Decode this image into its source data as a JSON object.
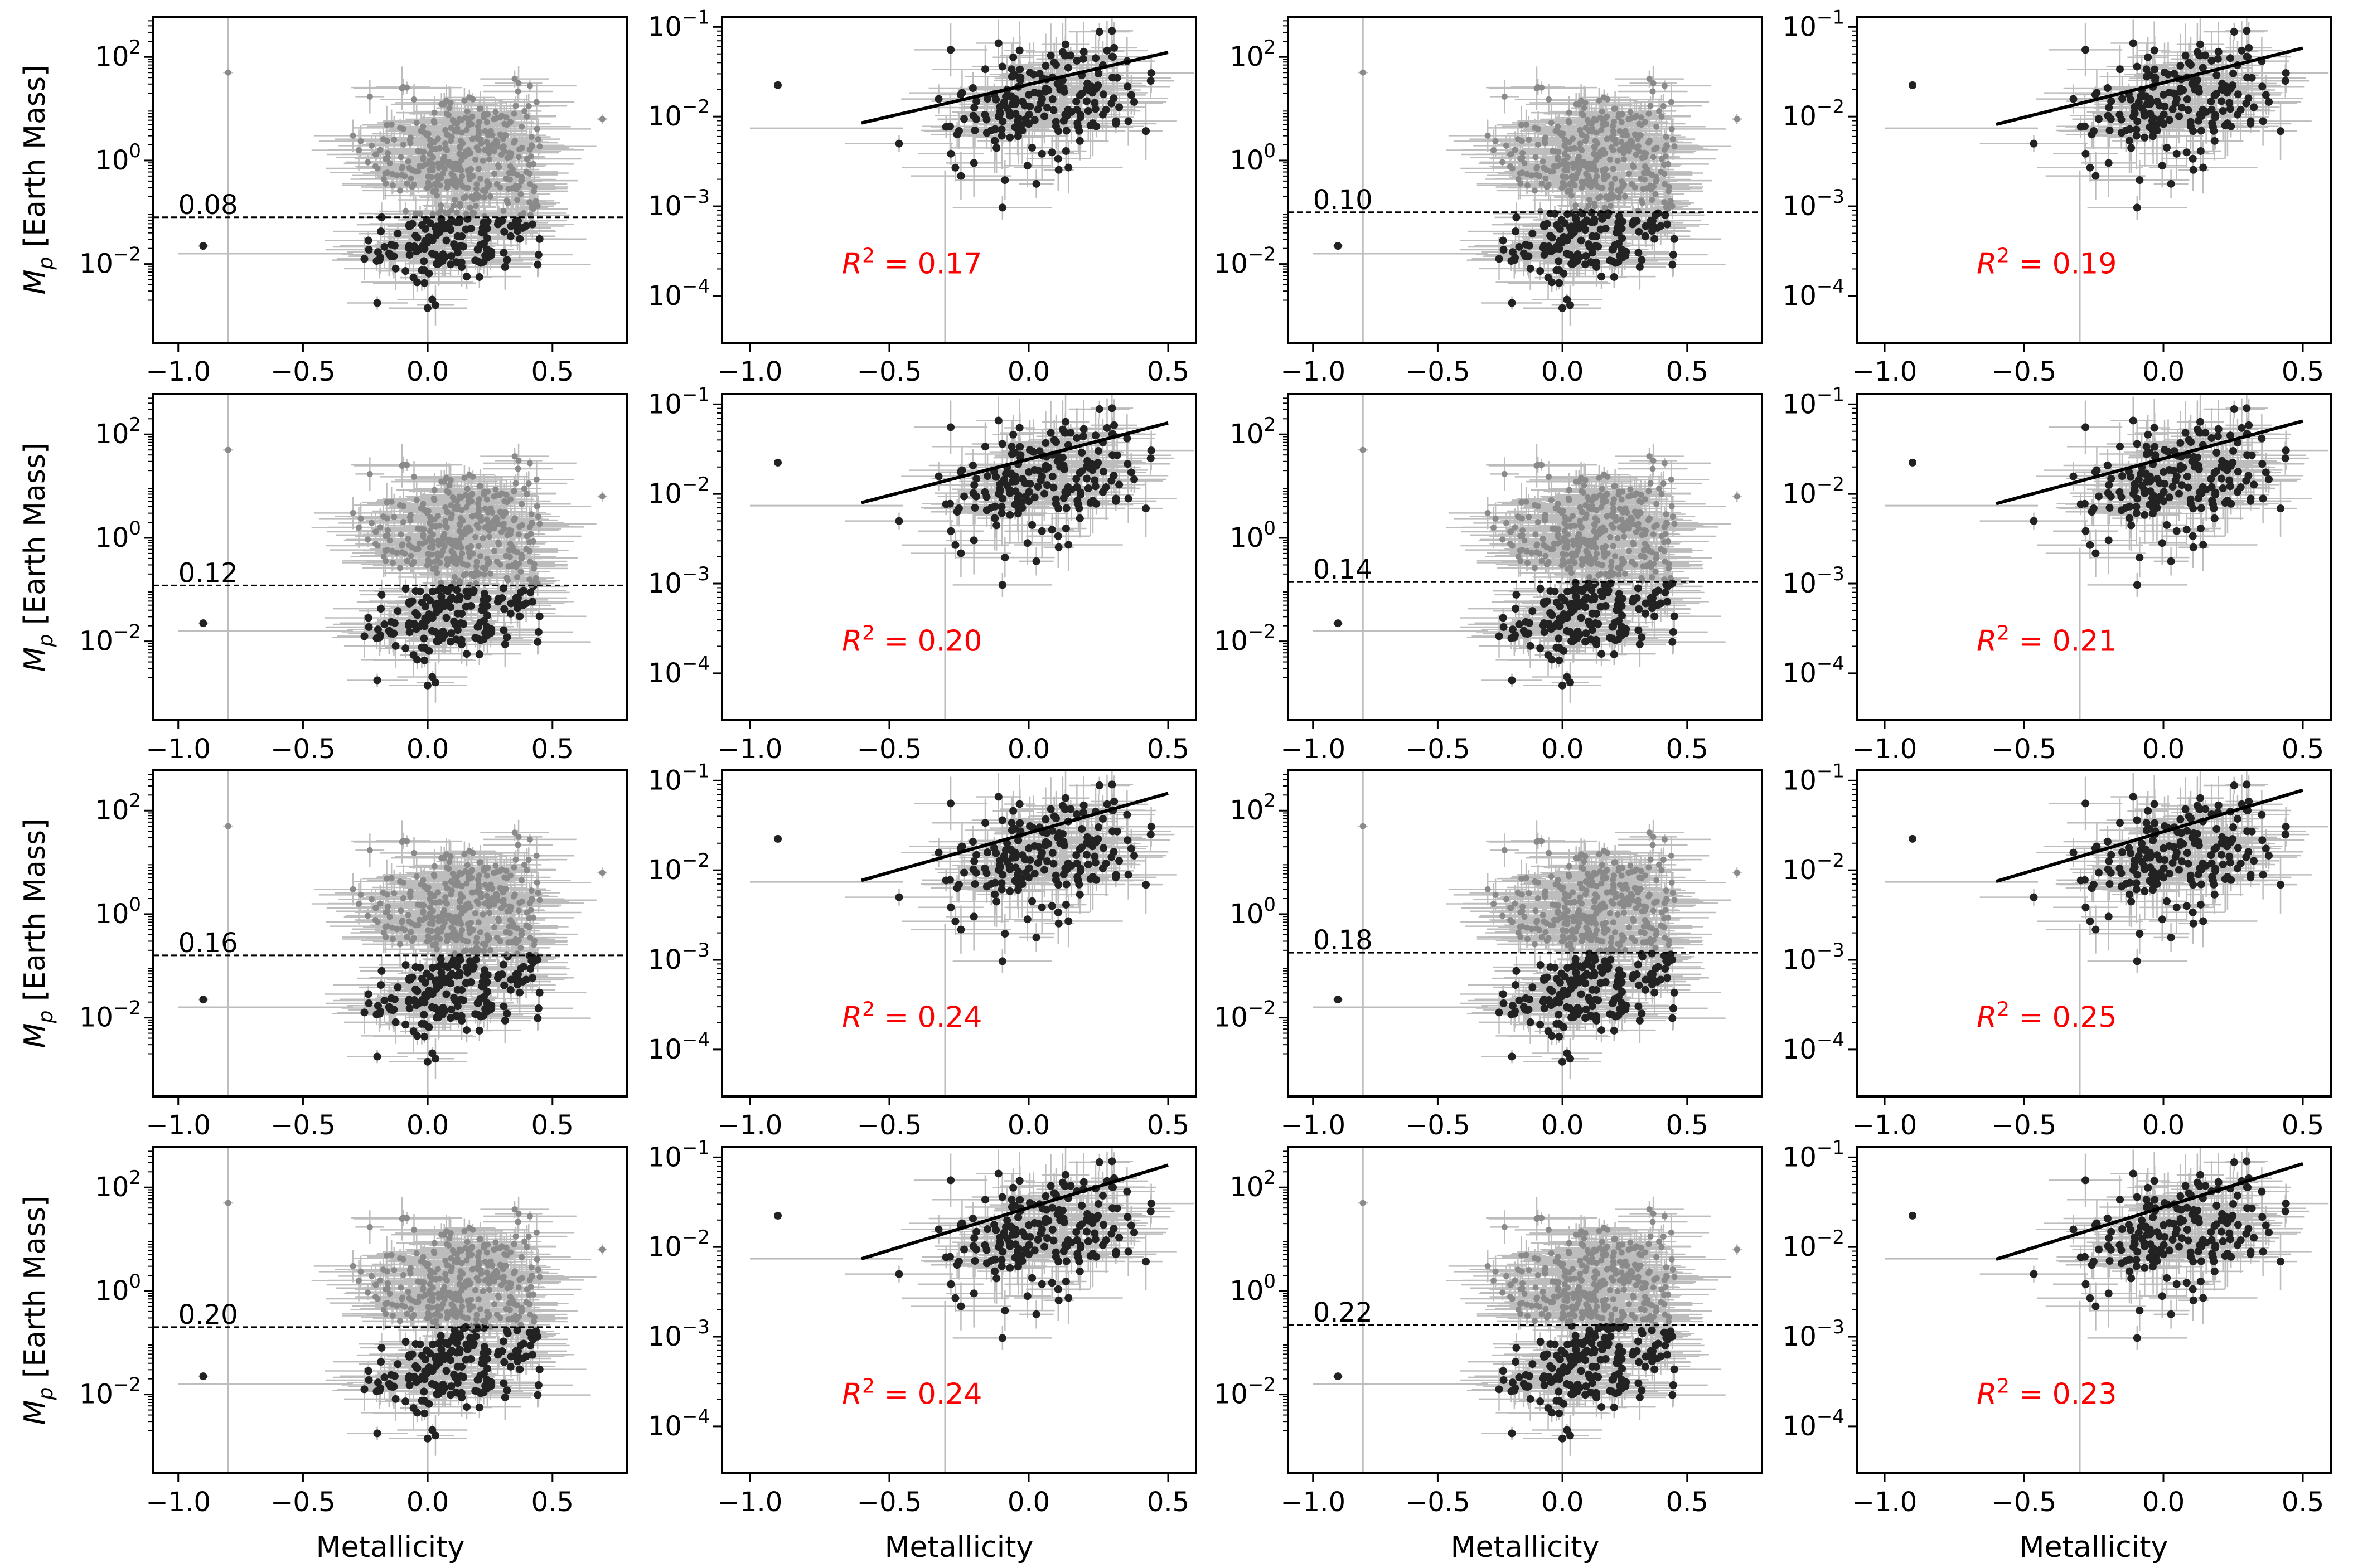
{
  "figure": {
    "ylabel_text": "[Earth Mass]",
    "xlabel": "Metallicity"
  },
  "style": {
    "giant_color": "#8a8a8a",
    "small_color": "#222222",
    "errorbar_color": "#bdbdbd",
    "fit_color": "#000000",
    "r2_color": "#ff0000",
    "threshold_line_color": "#000000"
  },
  "chart_data": [
    {
      "type": "scatter",
      "row": 1,
      "variant": "mass",
      "xlabel": "",
      "ylabel": "M_p [Earth Mass]",
      "ylog": true,
      "xlim": [
        -1.1,
        0.8
      ],
      "ylim": [
        0.0003,
        600
      ],
      "xticks": [
        -1.0,
        -0.5,
        0.0,
        0.5
      ],
      "yticks": [
        "10^2",
        "10^0",
        "10^-2"
      ],
      "threshold": 0.08,
      "threshold_label": "0.08"
    },
    {
      "type": "scatter",
      "row": 1,
      "variant": "fraction",
      "xlabel": "",
      "ylog": true,
      "xlim": [
        -1.1,
        0.6
      ],
      "ylim": [
        3e-05,
        0.13
      ],
      "xticks": [
        -1.0,
        -0.5,
        0.0,
        0.5
      ],
      "yticks": [
        "10^-1",
        "10^-2",
        "10^-3",
        "10^-4"
      ],
      "fit": {
        "x": [
          -0.6,
          0.5
        ],
        "y": [
          0.0085,
          0.052
        ]
      },
      "r2": 0.17,
      "r2_label": "0.17"
    },
    {
      "type": "scatter",
      "row": 1,
      "variant": "mass",
      "xlabel": "",
      "ylog": true,
      "xlim": [
        -1.1,
        0.8
      ],
      "ylim": [
        0.0003,
        600
      ],
      "xticks": [
        -1.0,
        -0.5,
        0.0,
        0.5
      ],
      "yticks": [
        "10^2",
        "10^0",
        "10^-2"
      ],
      "threshold": 0.1,
      "threshold_label": "0.10"
    },
    {
      "type": "scatter",
      "row": 1,
      "variant": "fraction",
      "xlabel": "",
      "ylog": true,
      "xlim": [
        -1.1,
        0.6
      ],
      "ylim": [
        3e-05,
        0.13
      ],
      "xticks": [
        -1.0,
        -0.5,
        0.0,
        0.5
      ],
      "yticks": [
        "10^-1",
        "10^-2",
        "10^-3",
        "10^-4"
      ],
      "fit": {
        "x": [
          -0.6,
          0.5
        ],
        "y": [
          0.0082,
          0.058
        ]
      },
      "r2": 0.19,
      "r2_label": "0.19"
    },
    {
      "type": "scatter",
      "row": 2,
      "variant": "mass",
      "xlabel": "",
      "ylabel": "M_p [Earth Mass]",
      "ylog": true,
      "xlim": [
        -1.1,
        0.8
      ],
      "ylim": [
        0.0003,
        600
      ],
      "xticks": [
        -1.0,
        -0.5,
        0.0,
        0.5
      ],
      "yticks": [
        "10^2",
        "10^0",
        "10^-2"
      ],
      "threshold": 0.12,
      "threshold_label": "0.12"
    },
    {
      "type": "scatter",
      "row": 2,
      "variant": "fraction",
      "xlabel": "",
      "ylog": true,
      "xlim": [
        -1.1,
        0.6
      ],
      "ylim": [
        3e-05,
        0.13
      ],
      "xticks": [
        -1.0,
        -0.5,
        0.0,
        0.5
      ],
      "yticks": [
        "10^-1",
        "10^-2",
        "10^-3",
        "10^-4"
      ],
      "fit": {
        "x": [
          -0.6,
          0.5
        ],
        "y": [
          0.008,
          0.062
        ]
      },
      "r2": 0.2,
      "r2_label": "0.20"
    },
    {
      "type": "scatter",
      "row": 2,
      "variant": "mass",
      "xlabel": "",
      "ylog": true,
      "xlim": [
        -1.1,
        0.8
      ],
      "ylim": [
        0.0003,
        600
      ],
      "xticks": [
        -1.0,
        -0.5,
        0.0,
        0.5
      ],
      "yticks": [
        "10^2",
        "10^0",
        "10^-2"
      ],
      "threshold": 0.14,
      "threshold_label": "0.14"
    },
    {
      "type": "scatter",
      "row": 2,
      "variant": "fraction",
      "xlabel": "",
      "ylog": true,
      "xlim": [
        -1.1,
        0.6
      ],
      "ylim": [
        3e-05,
        0.13
      ],
      "xticks": [
        -1.0,
        -0.5,
        0.0,
        0.5
      ],
      "yticks": [
        "10^-1",
        "10^-2",
        "10^-3",
        "10^-4"
      ],
      "fit": {
        "x": [
          -0.6,
          0.5
        ],
        "y": [
          0.0078,
          0.065
        ]
      },
      "r2": 0.21,
      "r2_label": "0.21"
    },
    {
      "type": "scatter",
      "row": 3,
      "variant": "mass",
      "xlabel": "",
      "ylabel": "M_p [Earth Mass]",
      "ylog": true,
      "xlim": [
        -1.1,
        0.8
      ],
      "ylim": [
        0.0003,
        600
      ],
      "xticks": [
        -1.0,
        -0.5,
        0.0,
        0.5
      ],
      "yticks": [
        "10^2",
        "10^0",
        "10^-2"
      ],
      "threshold": 0.16,
      "threshold_label": "0.16"
    },
    {
      "type": "scatter",
      "row": 3,
      "variant": "fraction",
      "xlabel": "",
      "ylog": true,
      "xlim": [
        -1.1,
        0.6
      ],
      "ylim": [
        3e-05,
        0.13
      ],
      "xticks": [
        -1.0,
        -0.5,
        0.0,
        0.5
      ],
      "yticks": [
        "10^-1",
        "10^-2",
        "10^-3",
        "10^-4"
      ],
      "fit": {
        "x": [
          -0.6,
          0.5
        ],
        "y": [
          0.0077,
          0.072
        ]
      },
      "r2": 0.24,
      "r2_label": "0.24"
    },
    {
      "type": "scatter",
      "row": 3,
      "variant": "mass",
      "xlabel": "",
      "ylog": true,
      "xlim": [
        -1.1,
        0.8
      ],
      "ylim": [
        0.0003,
        600
      ],
      "xticks": [
        -1.0,
        -0.5,
        0.0,
        0.5
      ],
      "yticks": [
        "10^2",
        "10^0",
        "10^-2"
      ],
      "threshold": 0.18,
      "threshold_label": "0.18"
    },
    {
      "type": "scatter",
      "row": 3,
      "variant": "fraction",
      "xlabel": "",
      "ylog": true,
      "xlim": [
        -1.1,
        0.6
      ],
      "ylim": [
        3e-05,
        0.13
      ],
      "xticks": [
        -1.0,
        -0.5,
        0.0,
        0.5
      ],
      "yticks": [
        "10^-1",
        "10^-2",
        "10^-3",
        "10^-4"
      ],
      "fit": {
        "x": [
          -0.6,
          0.5
        ],
        "y": [
          0.0075,
          0.078
        ]
      },
      "r2": 0.25,
      "r2_label": "0.25"
    },
    {
      "type": "scatter",
      "row": 4,
      "variant": "mass",
      "xlabel": "Metallicity",
      "ylabel": "M_p [Earth Mass]",
      "ylog": true,
      "xlim": [
        -1.1,
        0.8
      ],
      "ylim": [
        0.0003,
        600
      ],
      "xticks": [
        -1.0,
        -0.5,
        0.0,
        0.5
      ],
      "yticks": [
        "10^2",
        "10^0",
        "10^-2"
      ],
      "threshold": 0.2,
      "threshold_label": "0.20"
    },
    {
      "type": "scatter",
      "row": 4,
      "variant": "fraction",
      "xlabel": "Metallicity",
      "ylog": true,
      "xlim": [
        -1.1,
        0.6
      ],
      "ylim": [
        3e-05,
        0.13
      ],
      "xticks": [
        -1.0,
        -0.5,
        0.0,
        0.5
      ],
      "yticks": [
        "10^-1",
        "10^-2",
        "10^-3",
        "10^-4"
      ],
      "fit": {
        "x": [
          -0.6,
          0.5
        ],
        "y": [
          0.0074,
          0.082
        ]
      },
      "r2": 0.24,
      "r2_label": "0.24"
    },
    {
      "type": "scatter",
      "row": 4,
      "variant": "mass",
      "xlabel": "Metallicity",
      "ylog": true,
      "xlim": [
        -1.1,
        0.8
      ],
      "ylim": [
        0.0003,
        600
      ],
      "xticks": [
        -1.0,
        -0.5,
        0.0,
        0.5
      ],
      "yticks": [
        "10^2",
        "10^0",
        "10^-2"
      ],
      "threshold": 0.22,
      "threshold_label": "0.22"
    },
    {
      "type": "scatter",
      "row": 4,
      "variant": "fraction",
      "xlabel": "Metallicity",
      "ylog": true,
      "xlim": [
        -1.1,
        0.6
      ],
      "ylim": [
        3e-05,
        0.13
      ],
      "xticks": [
        -1.0,
        -0.5,
        0.0,
        0.5
      ],
      "yticks": [
        "10^-1",
        "10^-2",
        "10^-3",
        "10^-4"
      ],
      "fit": {
        "x": [
          -0.6,
          0.5
        ],
        "y": [
          0.0073,
          0.085
        ]
      },
      "r2": 0.23,
      "r2_label": "0.23"
    }
  ]
}
